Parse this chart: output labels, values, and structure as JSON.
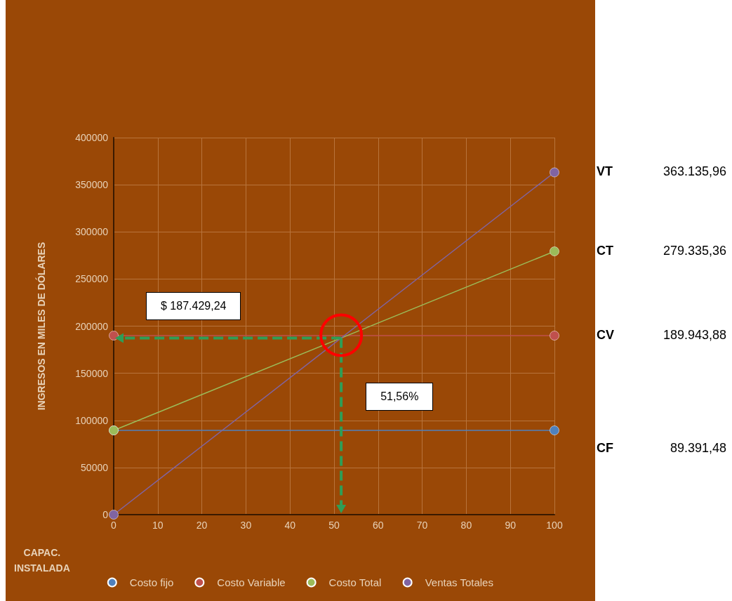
{
  "chart_data": {
    "type": "line",
    "xlabel": "CAPAC.\nINSTALADA",
    "ylabel": "INGRESOS EN MILES DE DÓLARES",
    "x": [
      0,
      100
    ],
    "xlim": [
      0,
      100
    ],
    "xticks": [
      0,
      10,
      20,
      30,
      40,
      50,
      60,
      70,
      80,
      90,
      100
    ],
    "ylim": [
      0,
      400000
    ],
    "yticks": [
      0,
      50000,
      100000,
      150000,
      200000,
      250000,
      300000,
      350000,
      400000
    ],
    "series": [
      {
        "name": "Costo fijo",
        "color": "#4f81bd",
        "values": [
          89391.48,
          89391.48
        ]
      },
      {
        "name": "Costo Variable",
        "color": "#c0504d",
        "values": [
          189943.88,
          189943.88
        ]
      },
      {
        "name": "Costo Total",
        "color": "#9bbb59",
        "values": [
          89391.48,
          279335.36
        ]
      },
      {
        "name": "Ventas Totales",
        "color": "#8064a2",
        "values": [
          0,
          363135.96
        ]
      }
    ],
    "annotations": [
      "$ 187.429,24",
      "51,56%",
      "VT",
      "363.135,96",
      "CT",
      "279.335,36",
      "CV",
      "189.943,88",
      "CF",
      "89.391,48"
    ],
    "grid": true,
    "legend": "bottom",
    "marker": "circle",
    "line_style": "solid"
  }
}
